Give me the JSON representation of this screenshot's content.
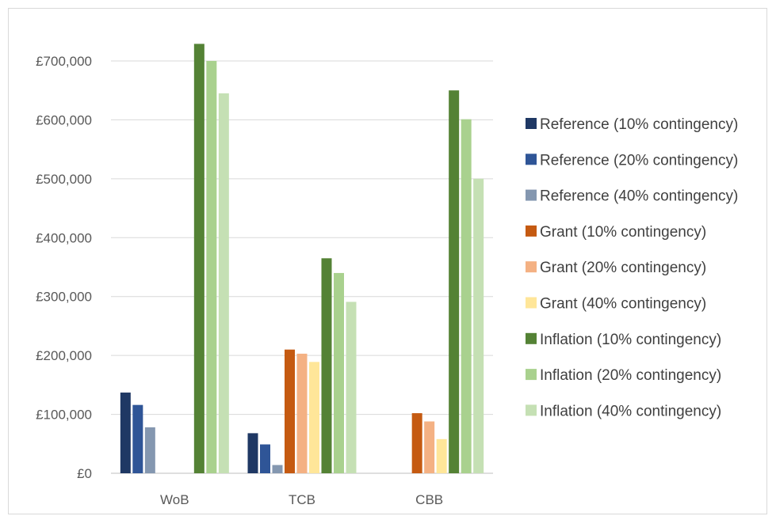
{
  "chart_data": {
    "type": "bar",
    "title": "",
    "xlabel": "",
    "ylabel": "",
    "categories": [
      "WoB",
      "TCB",
      "CBB"
    ],
    "ylim": [
      0,
      700000
    ],
    "yticks": [
      0,
      100000,
      200000,
      300000,
      400000,
      500000,
      600000,
      700000
    ],
    "ytick_labels": [
      "£0",
      "£100,000",
      "£200,000",
      "£300,000",
      "£400,000",
      "£500,000",
      "£600,000",
      "£700,000"
    ],
    "grid": true,
    "legend_position": "right",
    "series": [
      {
        "name": "Reference (10% contingency)",
        "color": "#1f3864",
        "values": [
          137000,
          68000,
          null
        ]
      },
      {
        "name": "Reference (20% contingency)",
        "color": "#2f5597",
        "values": [
          116000,
          49000,
          null
        ]
      },
      {
        "name": "Reference (40% contingency)",
        "color": "#8497b0",
        "values": [
          78000,
          14000,
          null
        ]
      },
      {
        "name": "Grant (10% contingency)",
        "color": "#c55a11",
        "values": [
          null,
          210000,
          102000
        ]
      },
      {
        "name": "Grant (20% contingency)",
        "color": "#f4b183",
        "values": [
          null,
          203000,
          88000
        ]
      },
      {
        "name": "Grant (40% contingency)",
        "color": "#ffe699",
        "values": [
          null,
          189000,
          58000
        ]
      },
      {
        "name": "Inflation (10% contingency)",
        "color": "#548235",
        "values": [
          729000,
          365000,
          650000
        ]
      },
      {
        "name": "Inflation (20% contingency)",
        "color": "#a9d18e",
        "values": [
          700000,
          340000,
          601000
        ]
      },
      {
        "name": "Inflation (40% contingency)",
        "color": "#c5e0b4",
        "values": [
          645000,
          291000,
          500000
        ]
      }
    ]
  }
}
